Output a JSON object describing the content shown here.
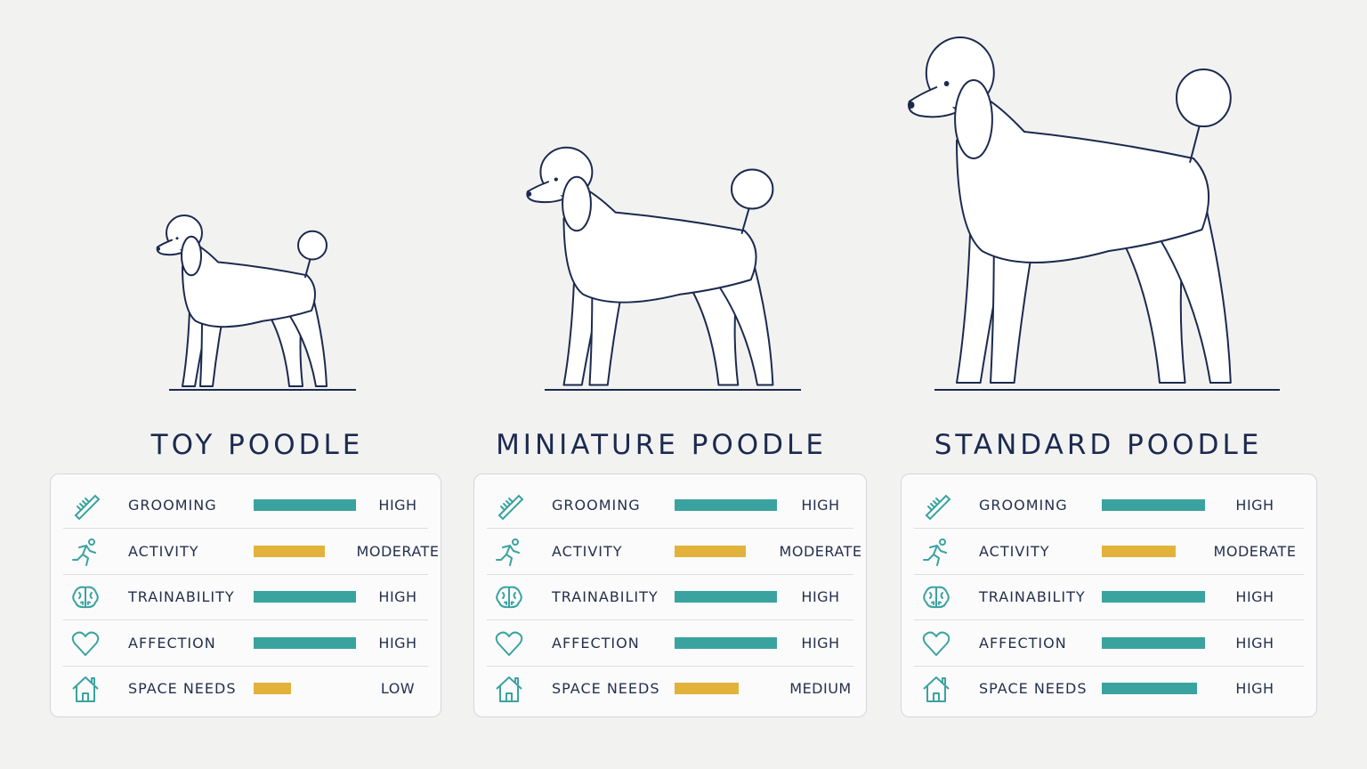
{
  "cards": [
    {
      "title": "TOY POODLE",
      "rows": [
        {
          "label": "GROOMING",
          "value": "HIGH",
          "level": 96
        },
        {
          "label": "ACTIVITY",
          "value": "MODERATE",
          "level": 67
        },
        {
          "label": "TRAINABILITY",
          "value": "HIGH",
          "level": 96
        },
        {
          "label": "AFFECTION",
          "value": "HIGH",
          "level": 96
        },
        {
          "label": "SPACE NEEDS",
          "value": "LOW",
          "level": 35
        }
      ]
    },
    {
      "title": "MINIATURE POODLE",
      "rows": [
        {
          "label": "GROOMING",
          "value": "HIGH",
          "level": 96
        },
        {
          "label": "ACTIVITY",
          "value": "MODERATE",
          "level": 67
        },
        {
          "label": "TRAINABILITY",
          "value": "HIGH",
          "level": 96
        },
        {
          "label": "AFFECTION",
          "value": "HIGH",
          "level": 96
        },
        {
          "label": "SPACE NEEDS",
          "value": "MEDIUM",
          "level": 60
        }
      ]
    },
    {
      "title": "STANDARD POODLE",
      "rows": [
        {
          "label": "GROOMING",
          "value": "HIGH",
          "level": 97
        },
        {
          "label": "ACTIVITY",
          "value": "MODERATE",
          "level": 69
        },
        {
          "label": "TRAINABILITY",
          "value": "HIGH",
          "level": 97
        },
        {
          "label": "AFFECTION",
          "value": "HIGH",
          "level": 97
        },
        {
          "label": "SPACE NEEDS",
          "value": "HIGH",
          "level": 89
        }
      ]
    }
  ]
}
